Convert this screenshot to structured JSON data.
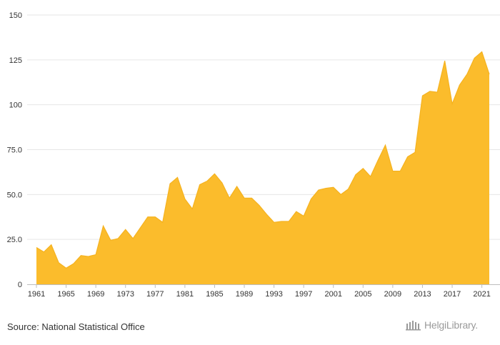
{
  "chart_data": {
    "type": "area",
    "title": "",
    "xlabel": "",
    "ylabel": "",
    "ylim": [
      0,
      150
    ],
    "xlim": [
      1961,
      2022
    ],
    "grid": true,
    "legend": "none",
    "color": "#FBBC2C",
    "yticks": [
      {
        "value": 0,
        "label": "0"
      },
      {
        "value": 25,
        "label": "25.0"
      },
      {
        "value": 50,
        "label": "50.0"
      },
      {
        "value": 75,
        "label": "75.0"
      },
      {
        "value": 100,
        "label": "100"
      },
      {
        "value": 125,
        "label": "125"
      },
      {
        "value": 150,
        "label": "150"
      }
    ],
    "xticks": [
      1961,
      1965,
      1969,
      1973,
      1977,
      1981,
      1985,
      1989,
      1993,
      1997,
      2001,
      2005,
      2009,
      2013,
      2017,
      2021
    ],
    "x": [
      1961,
      1962,
      1963,
      1964,
      1965,
      1966,
      1967,
      1968,
      1969,
      1970,
      1971,
      1972,
      1973,
      1974,
      1975,
      1976,
      1977,
      1978,
      1979,
      1980,
      1981,
      1982,
      1983,
      1984,
      1985,
      1986,
      1987,
      1988,
      1989,
      1990,
      1991,
      1992,
      1993,
      1994,
      1995,
      1996,
      1997,
      1998,
      1999,
      2000,
      2001,
      2002,
      2003,
      2004,
      2005,
      2006,
      2007,
      2008,
      2009,
      2010,
      2011,
      2012,
      2013,
      2014,
      2015,
      2016,
      2017,
      2018,
      2019,
      2020,
      2021,
      2022
    ],
    "values": [
      20.5,
      18.0,
      22.0,
      12.0,
      9.0,
      11.5,
      16.0,
      15.5,
      16.5,
      32.5,
      24.5,
      25.5,
      30.5,
      25.5,
      31.5,
      37.5,
      37.5,
      34.5,
      56.0,
      59.5,
      47.5,
      42.0,
      55.5,
      57.5,
      61.5,
      56.5,
      48.0,
      54.5,
      48.0,
      48.0,
      44.0,
      39.0,
      34.5,
      35.0,
      35.0,
      40.5,
      38.0,
      47.5,
      52.5,
      53.5,
      54.0,
      50.0,
      53.0,
      61.0,
      64.5,
      60.0,
      69.0,
      77.5,
      63.0,
      63.0,
      71.0,
      73.5,
      105.0,
      107.5,
      107.0,
      124.5,
      100.5,
      111.0,
      117.0,
      126.0,
      129.5,
      117.0
    ]
  },
  "footer": {
    "source": "Source: National Statistical Office",
    "brand": "HelgiLibrary."
  }
}
